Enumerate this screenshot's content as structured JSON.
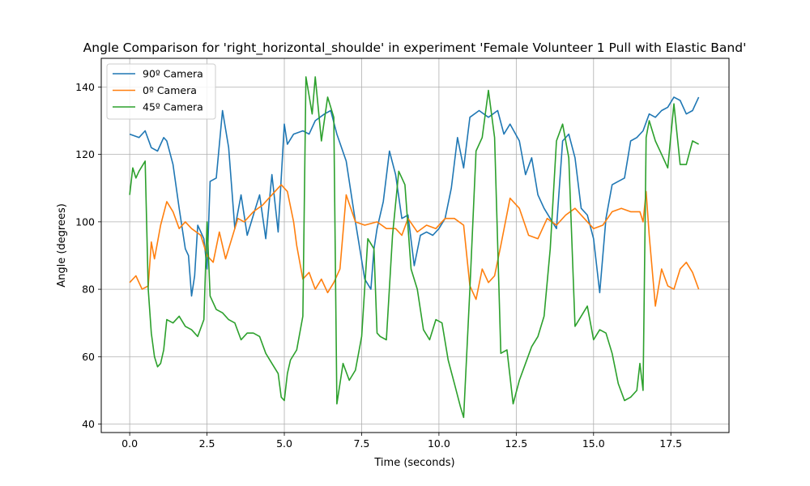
{
  "chart_data": {
    "type": "line",
    "title": "Angle Comparison for 'right_horizontal_shoulde' in experiment 'Female Volunteer 1 Pull with Elastic Band'",
    "xlabel": "Time (seconds)",
    "ylabel": "Angle (degrees)",
    "xlim": [
      -0.92,
      19.38
    ],
    "ylim": [
      37.5,
      148.5
    ],
    "xticks": [
      0,
      2.5,
      5,
      7.5,
      10,
      12.5,
      15,
      17.5
    ],
    "xtick_labels": [
      "0.0",
      "2.5",
      "5.0",
      "7.5",
      "10.0",
      "12.5",
      "15.0",
      "17.5"
    ],
    "yticks": [
      40,
      60,
      80,
      100,
      120,
      140
    ],
    "ytick_labels": [
      "40",
      "60",
      "80",
      "100",
      "120",
      "140"
    ],
    "grid": true,
    "legend_position": "upper left",
    "series": [
      {
        "name": "90º Camera",
        "color": "#1f77b4",
        "x": [
          0.0,
          0.3,
          0.5,
          0.7,
          0.9,
          1.1,
          1.2,
          1.4,
          1.6,
          1.8,
          1.9,
          2.0,
          2.1,
          2.2,
          2.4,
          2.5,
          2.6,
          2.8,
          3.0,
          3.2,
          3.4,
          3.6,
          3.8,
          4.0,
          4.2,
          4.4,
          4.6,
          4.8,
          5.0,
          5.1,
          5.3,
          5.6,
          5.8,
          6.0,
          6.3,
          6.5,
          6.7,
          7.0,
          7.3,
          7.6,
          7.8,
          7.9,
          8.0,
          8.2,
          8.4,
          8.6,
          8.8,
          9.0,
          9.2,
          9.4,
          9.6,
          9.8,
          10.0,
          10.2,
          10.4,
          10.6,
          10.8,
          11.0,
          11.3,
          11.6,
          11.9,
          12.1,
          12.3,
          12.6,
          12.8,
          13.0,
          13.2,
          13.4,
          13.6,
          13.8,
          14.0,
          14.2,
          14.4,
          14.6,
          14.8,
          15.0,
          15.2,
          15.4,
          15.6,
          15.8,
          16.0,
          16.2,
          16.4,
          16.6,
          16.8,
          17.0,
          17.2,
          17.4,
          17.6,
          17.8,
          18.0,
          18.2,
          18.4
        ],
        "values": [
          126,
          125,
          127,
          122,
          121,
          125,
          124,
          117,
          104,
          92,
          90,
          78,
          84,
          99,
          95,
          86,
          112,
          113,
          133,
          122,
          98,
          108,
          96,
          102,
          108,
          95,
          114,
          97,
          129,
          123,
          126,
          127,
          126,
          130,
          132,
          133,
          126,
          118,
          100,
          83,
          80,
          92,
          98,
          106,
          121,
          114,
          101,
          102,
          87,
          96,
          97,
          96,
          98,
          101,
          110,
          125,
          116,
          131,
          133,
          131,
          133,
          126,
          129,
          124,
          114,
          119,
          108,
          104,
          101,
          98,
          124,
          126,
          119,
          104,
          102,
          95,
          79,
          101,
          111,
          112,
          113,
          124,
          125,
          127,
          132,
          131,
          133,
          134,
          137,
          136,
          132,
          133,
          137
        ]
      },
      {
        "name": "0º Camera",
        "color": "#ff7f0e",
        "x": [
          0.0,
          0.2,
          0.4,
          0.6,
          0.7,
          0.8,
          1.0,
          1.2,
          1.4,
          1.6,
          1.8,
          2.0,
          2.3,
          2.5,
          2.7,
          2.9,
          3.1,
          3.3,
          3.5,
          3.7,
          4.0,
          4.3,
          4.6,
          4.9,
          5.1,
          5.3,
          5.4,
          5.6,
          5.8,
          6.0,
          6.2,
          6.4,
          6.6,
          6.8,
          7.0,
          7.3,
          7.6,
          8.0,
          8.3,
          8.6,
          8.8,
          9.0,
          9.3,
          9.6,
          9.9,
          10.2,
          10.5,
          10.8,
          11.0,
          11.2,
          11.4,
          11.6,
          11.8,
          12.0,
          12.3,
          12.6,
          12.9,
          13.2,
          13.5,
          13.8,
          14.1,
          14.4,
          14.7,
          15.0,
          15.3,
          15.6,
          15.9,
          16.2,
          16.5,
          16.6,
          16.7,
          16.8,
          17.0,
          17.2,
          17.4,
          17.6,
          17.8,
          18.0,
          18.2,
          18.4
        ],
        "values": [
          82,
          84,
          80,
          81,
          94,
          89,
          99,
          106,
          103,
          98,
          100,
          98,
          96,
          90,
          88,
          97,
          89,
          95,
          101,
          100,
          103,
          105,
          108,
          111,
          109,
          100,
          93,
          83,
          85,
          80,
          83,
          79,
          82,
          86,
          108,
          100,
          99,
          100,
          98,
          98,
          96,
          101,
          97,
          99,
          98,
          101,
          101,
          99,
          81,
          77,
          86,
          82,
          84,
          93,
          107,
          104,
          96,
          95,
          101,
          99,
          102,
          104,
          101,
          98,
          99,
          103,
          104,
          103,
          103,
          100,
          109,
          96,
          75,
          86,
          81,
          80,
          86,
          88,
          85,
          80
        ]
      },
      {
        "name": "45º Camera",
        "color": "#2ca02c",
        "x": [
          0.0,
          0.1,
          0.2,
          0.3,
          0.5,
          0.6,
          0.7,
          0.8,
          0.9,
          1.0,
          1.1,
          1.2,
          1.4,
          1.6,
          1.8,
          2.0,
          2.2,
          2.4,
          2.5,
          2.6,
          2.8,
          3.0,
          3.2,
          3.4,
          3.6,
          3.8,
          4.0,
          4.2,
          4.4,
          4.6,
          4.8,
          4.9,
          5.0,
          5.1,
          5.2,
          5.4,
          5.6,
          5.7,
          5.9,
          6.0,
          6.2,
          6.4,
          6.6,
          6.7,
          6.9,
          7.1,
          7.3,
          7.5,
          7.7,
          7.9,
          8.0,
          8.1,
          8.3,
          8.5,
          8.7,
          8.9,
          9.1,
          9.3,
          9.5,
          9.7,
          9.9,
          10.1,
          10.3,
          10.5,
          10.7,
          10.8,
          11.0,
          11.2,
          11.4,
          11.6,
          11.8,
          12.0,
          12.2,
          12.4,
          12.6,
          12.8,
          13.0,
          13.2,
          13.4,
          13.6,
          13.8,
          14.0,
          14.2,
          14.4,
          14.6,
          14.8,
          15.0,
          15.2,
          15.4,
          15.6,
          15.8,
          16.0,
          16.2,
          16.4,
          16.5,
          16.6,
          16.7,
          16.8,
          17.0,
          17.2,
          17.4,
          17.6,
          17.8,
          18.0,
          18.2,
          18.4
        ],
        "values": [
          108,
          116,
          113,
          115,
          118,
          80,
          67,
          60,
          57,
          58,
          62,
          71,
          70,
          72,
          69,
          68,
          66,
          71,
          100,
          78,
          74,
          73,
          71,
          70,
          65,
          67,
          67,
          66,
          61,
          58,
          55,
          48,
          47,
          55,
          59,
          62,
          72,
          143,
          132,
          143,
          124,
          137,
          131,
          46,
          58,
          53,
          56,
          66,
          95,
          92,
          67,
          66,
          65,
          96,
          115,
          111,
          86,
          80,
          68,
          65,
          71,
          70,
          59,
          52,
          45,
          42,
          80,
          121,
          125,
          139,
          125,
          61,
          62,
          46,
          53,
          58,
          63,
          66,
          72,
          92,
          124,
          129,
          119,
          69,
          72,
          75,
          65,
          68,
          67,
          61,
          52,
          47,
          48,
          50,
          58,
          50,
          125,
          130,
          124,
          120,
          116,
          135,
          117,
          117,
          124,
          123
        ]
      }
    ]
  }
}
